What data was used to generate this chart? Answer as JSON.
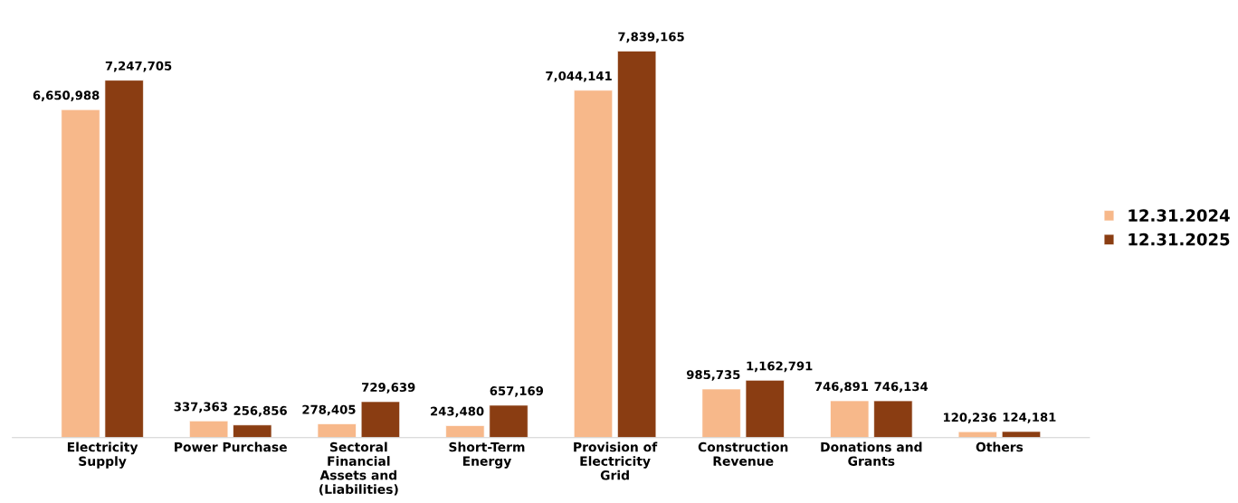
{
  "chart_data": {
    "type": "bar",
    "categories": [
      "Electricity Supply",
      "Power Purchase",
      "Sectoral Financial Assets and (Liabilities)",
      "Short-Term Energy",
      "Provision of Electricity Grid",
      "Construction Revenue",
      "Donations and Grants",
      "Others"
    ],
    "series": [
      {
        "name": "12.31.2024",
        "color": "#f7b88a",
        "values": [
          6650988,
          337363,
          278405,
          243480,
          7044141,
          985735,
          746891,
          120236
        ],
        "value_labels": [
          "6,650,988",
          "337,363",
          "278,405",
          "243,480",
          "7,044,141",
          "985,735",
          "746,891",
          "120,236"
        ]
      },
      {
        "name": "12.31.2025",
        "color": "#8a3d12",
        "values": [
          7247705,
          256856,
          729639,
          657169,
          7839165,
          1162791,
          746134,
          124181
        ],
        "value_labels": [
          "7,247,705",
          "256,856",
          "729,639",
          "657,169",
          "7,839,165",
          "1,162,791",
          "746,134",
          "124,181"
        ]
      }
    ],
    "legend": "right",
    "tick_labels": "x",
    "grid": false
  }
}
